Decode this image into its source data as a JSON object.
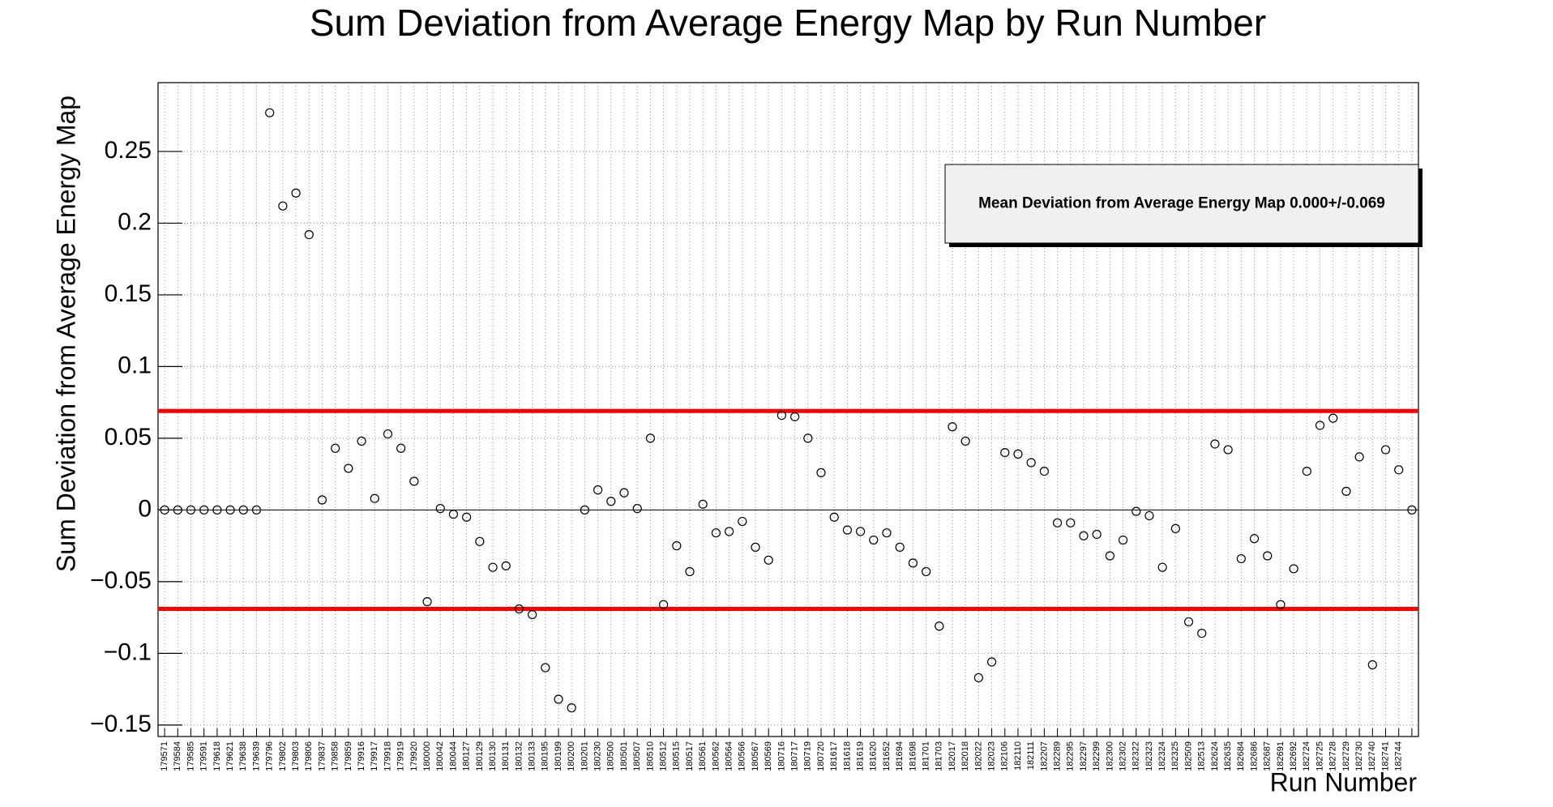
{
  "chart_data": {
    "type": "scatter",
    "title": "Sum Deviation from Average Energy Map by Run Number",
    "x_label": "Run Number",
    "y_label": "Sum Deviation from Average Energy Map",
    "categories": [
      "179571",
      "179584",
      "179585",
      "179591",
      "179618",
      "179621",
      "179638",
      "179639",
      "179796",
      "179802",
      "179803",
      "179806",
      "179837",
      "179858",
      "179859",
      "179916",
      "179917",
      "179918",
      "179919",
      "179920",
      "180000",
      "180042",
      "180044",
      "180127",
      "180129",
      "180130",
      "180131",
      "180132",
      "180133",
      "180195",
      "180199",
      "180200",
      "180201",
      "180230",
      "180500",
      "180501",
      "180507",
      "180510",
      "180512",
      "180515",
      "180517",
      "180561",
      "180562",
      "180564",
      "180566",
      "180567",
      "180569",
      "180716",
      "180717",
      "180719",
      "180720",
      "181617",
      "181618",
      "181619",
      "181620",
      "181652",
      "181694",
      "181698",
      "181701",
      "181703",
      "182017",
      "182018",
      "182022",
      "182023",
      "182106",
      "182110",
      "182111",
      "182207",
      "182289",
      "182295",
      "182297",
      "182299",
      "182300",
      "182302",
      "182322",
      "182323",
      "182324",
      "182325",
      "182509",
      "182513",
      "182624",
      "182635",
      "182684",
      "182686",
      "182687",
      "182691",
      "182692",
      "182724",
      "182725",
      "182728",
      "182729",
      "182730",
      "182740",
      "182741",
      "182744",
      null
    ],
    "values": [
      0,
      0,
      0,
      0,
      0,
      0,
      0,
      0,
      0.277,
      0.212,
      0.221,
      0.192,
      0.007,
      0.043,
      0.029,
      0.048,
      0.008,
      0.053,
      0.043,
      0.02,
      -0.064,
      0.001,
      -0.003,
      -0.005,
      -0.022,
      -0.04,
      -0.039,
      -0.069,
      -0.073,
      -0.11,
      -0.132,
      -0.138,
      0,
      0.014,
      0.006,
      0.012,
      0.001,
      0.05,
      -0.066,
      -0.025,
      -0.043,
      0.004,
      -0.016,
      -0.015,
      -0.008,
      -0.026,
      -0.035,
      0.066,
      0.065,
      0.05,
      0.026,
      -0.005,
      -0.014,
      -0.015,
      -0.021,
      -0.016,
      -0.026,
      -0.037,
      -0.043,
      -0.081,
      0.058,
      0.048,
      -0.117,
      -0.106,
      0.04,
      0.039,
      0.033,
      0.027,
      -0.009,
      -0.009,
      -0.018,
      -0.017,
      -0.032,
      -0.021,
      -0.001,
      -0.004,
      -0.04,
      -0.013,
      -0.078,
      -0.086,
      0.046,
      0.042,
      -0.034,
      -0.02,
      -0.032,
      -0.066,
      -0.041,
      0.027,
      0.059,
      0.064,
      0.013,
      0.037,
      -0.108,
      0.042,
      0.028,
      0
    ],
    "color": "#000000",
    "ylim": [
      -0.158,
      0.298
    ],
    "yticks": [
      {
        "value": -0.15,
        "label": "−0.15"
      },
      {
        "value": -0.1,
        "label": "−0.1"
      },
      {
        "value": -0.05,
        "label": "−0.05"
      },
      0,
      0.05,
      0.1,
      0.15,
      0.2,
      0.25
    ],
    "grid": true,
    "hlines": [
      {
        "value": 0.069,
        "color": "#ff0000"
      },
      {
        "value": -0.069,
        "color": "#ff0000"
      }
    ],
    "legend": {
      "text": "Mean Deviation from Average Energy Map 0.000+/-0.069",
      "position": "upper right"
    }
  }
}
